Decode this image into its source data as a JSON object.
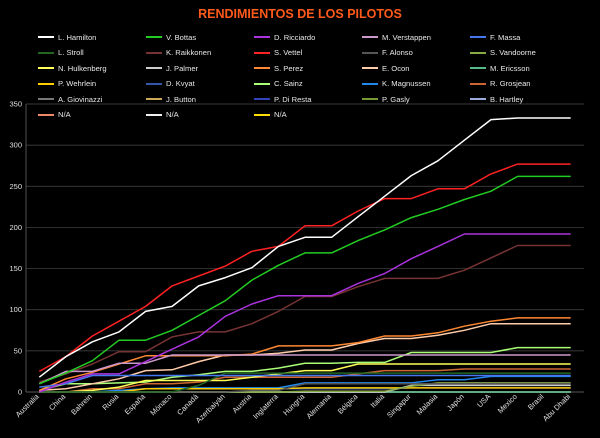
{
  "chart_data": {
    "type": "line",
    "title": "RENDIMIENTOS DE LOS PILOTOS",
    "xlabel": "",
    "ylabel": "",
    "ylim": [
      0,
      350
    ],
    "yticks": [
      0,
      50,
      100,
      150,
      200,
      250,
      300,
      350
    ],
    "grid": true,
    "legend_position": "top",
    "title_color": "#ff5a1a",
    "categories": [
      "Australia",
      "China",
      "Bahrein",
      "Rusia",
      "España",
      "Mónaco",
      "Canadá",
      "Azerbaiyán",
      "Austria",
      "Inglaterra",
      "Hungría",
      "Alemania",
      "Bélgica",
      "Italia",
      "Singapur",
      "Malasia",
      "Japón",
      "USA",
      "Mexico",
      "Brasil",
      "Abu Dhabi"
    ],
    "series": [
      {
        "name": "L. Hamilton",
        "color": "#ffffff",
        "values": [
          18,
          43,
          61,
          73,
          98,
          104,
          129,
          139,
          151,
          177,
          188,
          188,
          213,
          238,
          263,
          281,
          306,
          331,
          333,
          333,
          333
        ]
      },
      {
        "name": "V. Bottas",
        "color": "#22cc22",
        "values": [
          10,
          23,
          38,
          63,
          63,
          75,
          93,
          111,
          136,
          154,
          169,
          169,
          184,
          197,
          212,
          222,
          234,
          244,
          262,
          262,
          262
        ]
      },
      {
        "name": "D. Ricciardo",
        "color": "#aa33dd",
        "values": [
          0,
          12,
          22,
          22,
          37,
          52,
          67,
          92,
          107,
          117,
          117,
          117,
          132,
          144,
          162,
          177,
          192,
          192,
          192,
          192,
          192
        ]
      },
      {
        "name": "M. Verstappen",
        "color": "#cc99cc",
        "values": [
          10,
          25,
          25,
          35,
          35,
          45,
          45,
          45,
          45,
          45,
          45,
          45,
          45,
          45,
          45,
          45,
          45,
          45,
          45,
          45,
          45
        ]
      },
      {
        "name": "F. Massa",
        "color": "#4477ee",
        "values": [
          6,
          10,
          20,
          20,
          20,
          20,
          20,
          20,
          20,
          20,
          20,
          20,
          20,
          20,
          20,
          20,
          20,
          20,
          20,
          20,
          20
        ]
      },
      {
        "name": "L. Stroll",
        "color": "#226622",
        "values": [
          0,
          0,
          0,
          0,
          0,
          0,
          8,
          23,
          23,
          23,
          23,
          23,
          23,
          23,
          23,
          23,
          23,
          23,
          23,
          23,
          23
        ]
      },
      {
        "name": "K. Raikkonen",
        "color": "#773333",
        "values": [
          12,
          22,
          34,
          49,
          49,
          67,
          73,
          73,
          83,
          98,
          116,
          116,
          128,
          138,
          138,
          138,
          148,
          163,
          178,
          178,
          178
        ]
      },
      {
        "name": "S. Vettel",
        "color": "#ff2222",
        "values": [
          25,
          43,
          68,
          86,
          104,
          129,
          141,
          153,
          171,
          177,
          202,
          202,
          220,
          235,
          235,
          247,
          247,
          265,
          277,
          277,
          277
        ]
      },
      {
        "name": "F. Alonso",
        "color": "#555555",
        "values": [
          0,
          0,
          0,
          0,
          0,
          0,
          0,
          0,
          2,
          2,
          10,
          10,
          10,
          10,
          10,
          10,
          10,
          10,
          10,
          10,
          10
        ]
      },
      {
        "name": "S. Vandoorne",
        "color": "#88aa44",
        "values": [
          0,
          0,
          0,
          0,
          0,
          0,
          0,
          0,
          0,
          0,
          1,
          1,
          1,
          1,
          7,
          11,
          11,
          11,
          11,
          11,
          11
        ]
      },
      {
        "name": "N. Hulkenberg",
        "color": "#ffff55",
        "values": [
          0,
          0,
          2,
          6,
          14,
          14,
          14,
          14,
          18,
          22,
          26,
          26,
          34,
          34,
          34,
          34,
          34,
          34,
          34,
          34,
          34
        ]
      },
      {
        "name": "J. Palmer",
        "color": "#cccccc",
        "values": [
          0,
          0,
          0,
          0,
          0,
          0,
          0,
          0,
          0,
          0,
          0,
          0,
          0,
          0,
          8,
          8,
          8,
          8,
          8,
          8,
          8
        ]
      },
      {
        "name": "S. Perez",
        "color": "#ff8833",
        "values": [
          2,
          16,
          24,
          34,
          44,
          44,
          44,
          44,
          46,
          56,
          56,
          56,
          60,
          68,
          68,
          72,
          80,
          86,
          90,
          90,
          90
        ]
      },
      {
        "name": "E. Ocon",
        "color": "#ffccaa",
        "values": [
          2,
          4,
          10,
          16,
          26,
          27,
          37,
          45,
          45,
          47,
          51,
          51,
          59,
          65,
          65,
          69,
          75,
          83,
          83,
          83,
          83
        ]
      },
      {
        "name": "M. Ericsson",
        "color": "#55bb88",
        "values": [
          0,
          0,
          0,
          0,
          0,
          0,
          0,
          0,
          0,
          0,
          0,
          0,
          0,
          0,
          0,
          0,
          0,
          0,
          0,
          0,
          0
        ]
      },
      {
        "name": "P. Wehrlein",
        "color": "#ffcc00",
        "values": [
          0,
          0,
          0,
          0,
          4,
          4,
          4,
          4,
          4,
          4,
          5,
          5,
          5,
          5,
          5,
          5,
          5,
          5,
          5,
          5,
          5
        ]
      },
      {
        "name": "D. Kvyat",
        "color": "#3355aa",
        "values": [
          0,
          0,
          0,
          0,
          4,
          4,
          4,
          4,
          4,
          4,
          4,
          4,
          4,
          4,
          5,
          5,
          5,
          5,
          5,
          5,
          5
        ]
      },
      {
        "name": "C. Sainz",
        "color": "#aaff77",
        "values": [
          2,
          10,
          10,
          11,
          12,
          18,
          21,
          25,
          25,
          29,
          35,
          35,
          36,
          36,
          48,
          48,
          48,
          48,
          54,
          54,
          54
        ]
      },
      {
        "name": "K. Magnussen",
        "color": "#2288ee",
        "values": [
          0,
          0,
          0,
          2,
          4,
          5,
          5,
          5,
          5,
          5,
          11,
          11,
          11,
          11,
          11,
          15,
          15,
          19,
          19,
          19,
          19
        ]
      },
      {
        "name": "R. Grosjean",
        "color": "#cc6633",
        "values": [
          0,
          0,
          4,
          4,
          10,
          10,
          12,
          18,
          18,
          18,
          18,
          18,
          22,
          26,
          26,
          26,
          28,
          28,
          28,
          28,
          28
        ]
      },
      {
        "name": "A. Giovinazzi",
        "color": "#777777",
        "values": [
          0,
          0,
          0,
          0,
          0,
          0,
          0,
          0,
          0,
          0,
          0,
          0,
          0,
          0,
          0,
          0,
          0,
          0,
          0,
          0,
          0
        ]
      },
      {
        "name": "J. Button",
        "color": "#ccaa55",
        "values": [
          0,
          0,
          0,
          0,
          0,
          0,
          0,
          0,
          0,
          0,
          0,
          0,
          0,
          0,
          0,
          0,
          0,
          0,
          0,
          0,
          0
        ]
      },
      {
        "name": "P. Di Resta",
        "color": "#3344bb",
        "values": [
          0,
          0,
          0,
          0,
          0,
          0,
          0,
          0,
          0,
          0,
          0,
          0,
          0,
          0,
          0,
          0,
          0,
          0,
          0,
          0,
          0
        ]
      },
      {
        "name": "P. Gasly",
        "color": "#779933",
        "values": [
          0,
          0,
          0,
          0,
          0,
          0,
          0,
          0,
          0,
          0,
          0,
          0,
          0,
          0,
          0,
          0,
          0,
          0,
          0,
          0,
          0
        ]
      },
      {
        "name": "B. Hartley",
        "color": "#99aadd",
        "values": [
          0,
          0,
          0,
          0,
          0,
          0,
          0,
          0,
          0,
          0,
          0,
          0,
          0,
          0,
          0,
          0,
          0,
          0,
          0,
          0,
          0
        ]
      },
      {
        "name": "N/A",
        "color": "#ee8866",
        "values": [
          0,
          0,
          0,
          0,
          0,
          0,
          0,
          0,
          0,
          0,
          0,
          0,
          0,
          0,
          0,
          0,
          0,
          0,
          0,
          0,
          0
        ]
      },
      {
        "name": "N/A",
        "color": "#eeeeee",
        "values": [
          0,
          0,
          0,
          0,
          0,
          0,
          0,
          0,
          0,
          0,
          0,
          0,
          0,
          0,
          0,
          0,
          0,
          0,
          0,
          0,
          0
        ]
      },
      {
        "name": "N/A",
        "color": "#ffdd00",
        "values": [
          0,
          0,
          0,
          0,
          0,
          0,
          0,
          0,
          0,
          0,
          0,
          0,
          0,
          0,
          0,
          0,
          0,
          0,
          0,
          0,
          0
        ]
      }
    ]
  }
}
